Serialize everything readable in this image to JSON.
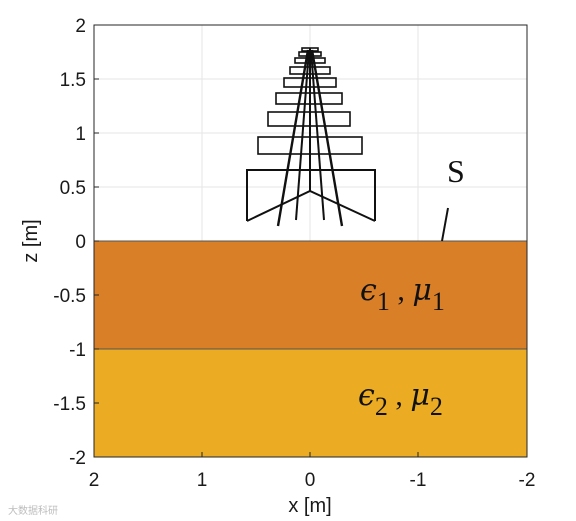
{
  "figure": {
    "xlabel": "x [m]",
    "ylabel": "z [m]",
    "x_ticks": [
      "2",
      "1",
      "0",
      "-1",
      "-2"
    ],
    "y_ticks": [
      "2",
      "1.5",
      "1",
      "0.5",
      "0",
      "-0.5",
      "-1",
      "-1.5",
      "-2"
    ],
    "xlim": [
      2,
      -2
    ],
    "ylim": [
      -2,
      2
    ],
    "grid": true
  },
  "layers": [
    {
      "eps": "ϵ",
      "eps_sub": "1",
      "sep": " , ",
      "mu": "μ",
      "mu_sub": "1",
      "z_top": 0,
      "z_bottom": -1,
      "color": "#d97f27"
    },
    {
      "eps": "ϵ",
      "eps_sub": "2",
      "sep": " , ",
      "mu": "μ",
      "mu_sub": "2",
      "z_top": -1,
      "z_bottom": -2,
      "color": "#ebac23"
    }
  ],
  "surface_label": "S",
  "watermark": "大数据科研"
}
